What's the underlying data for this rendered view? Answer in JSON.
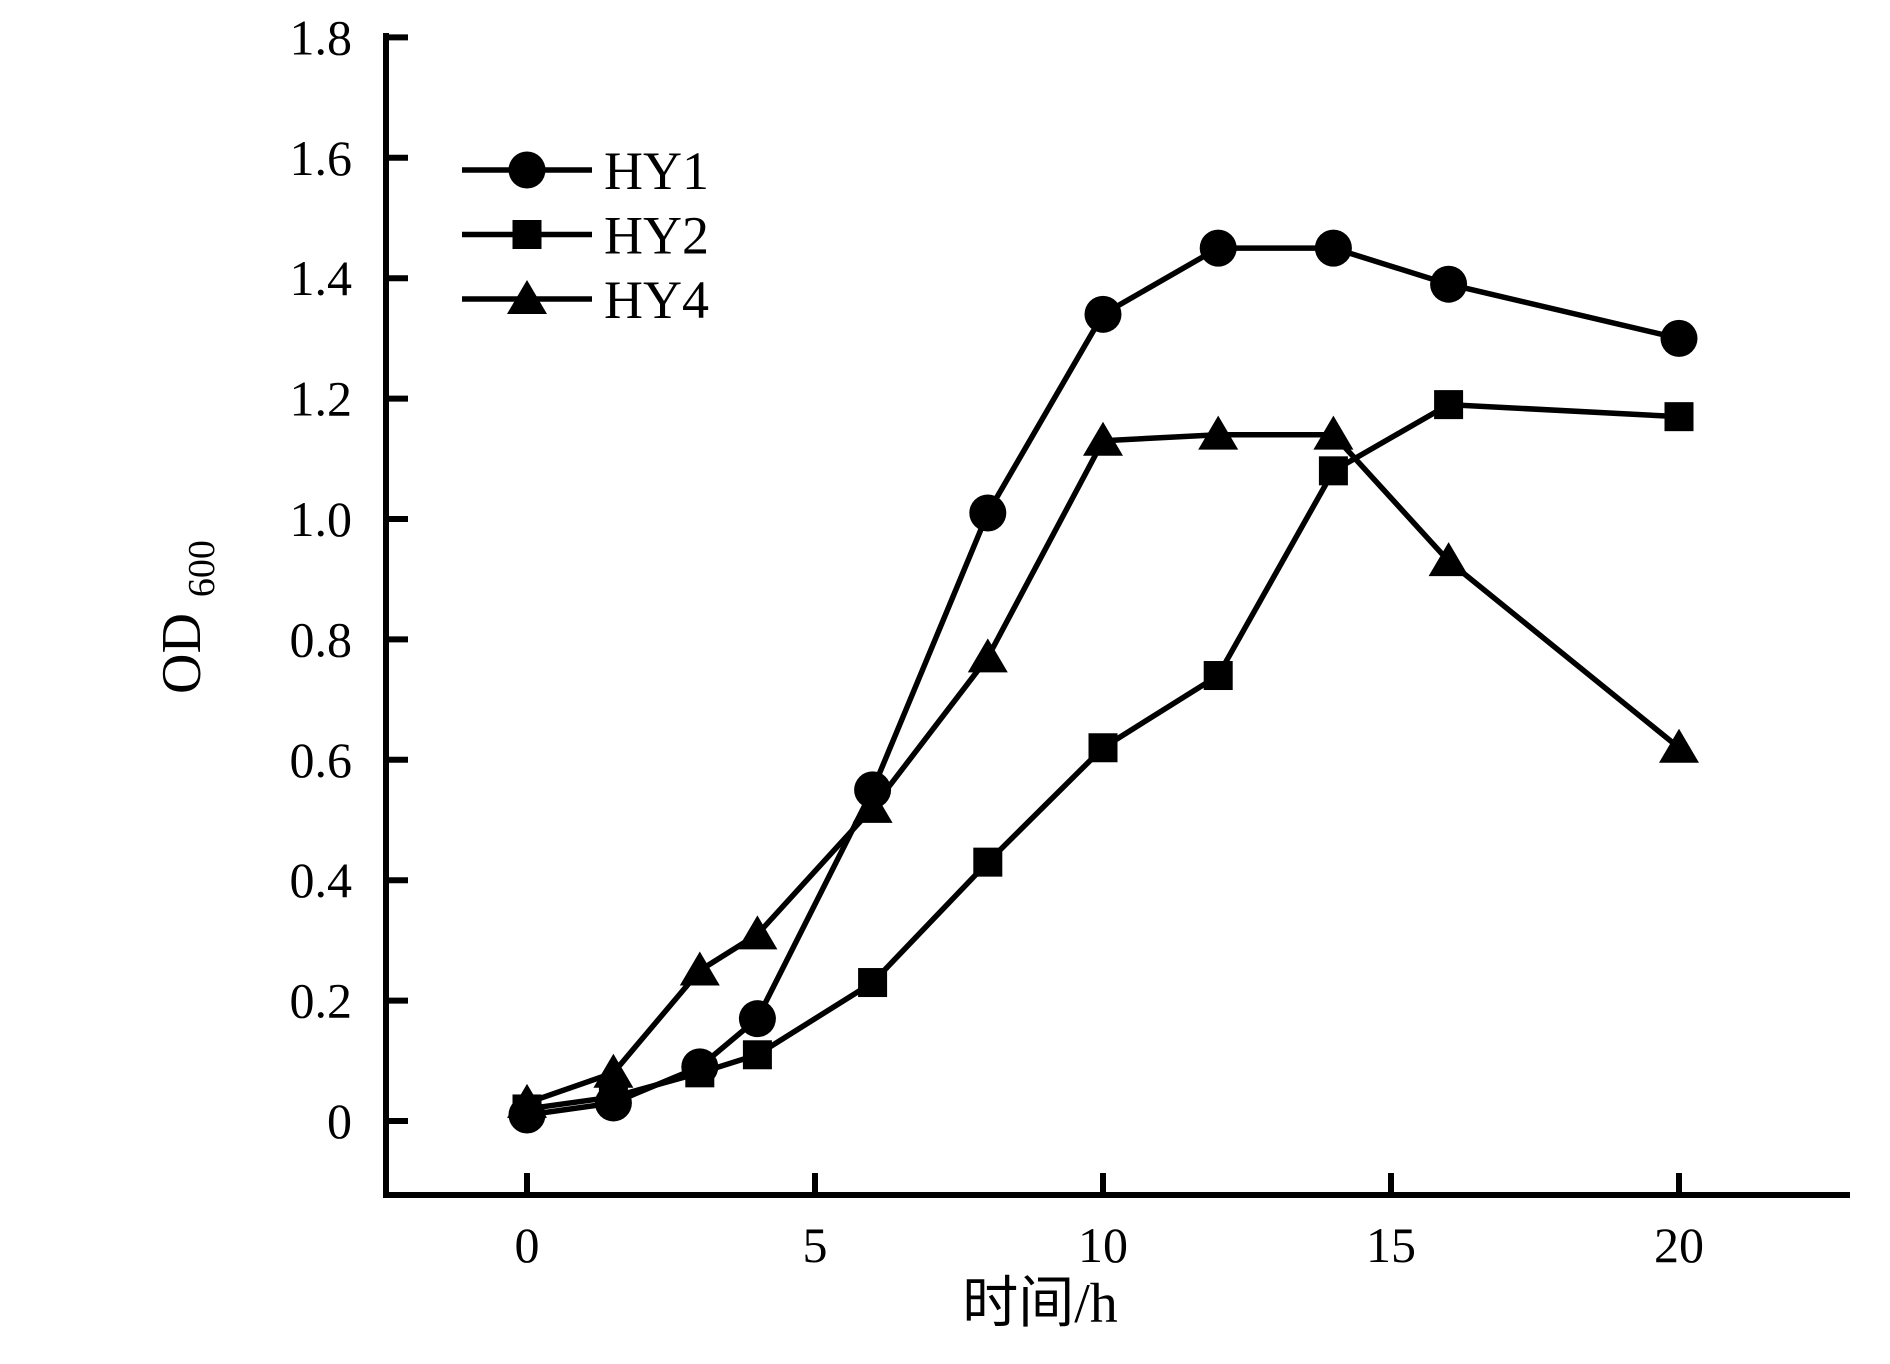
{
  "figure": {
    "background": "#ffffff",
    "ink": "#000000"
  },
  "chart_data": {
    "type": "line",
    "title": "",
    "xlabel": "时间/h",
    "ylabel": "OD600",
    "ylabel_main": "OD",
    "ylabel_sub": "600",
    "x": [
      0,
      1.5,
      3,
      4,
      6,
      8,
      10,
      12,
      14,
      16,
      20
    ],
    "series": [
      {
        "name": "HY1",
        "marker": "circle",
        "color": "#000000",
        "values": [
          0.01,
          0.03,
          0.09,
          0.17,
          0.55,
          1.01,
          1.34,
          1.45,
          1.45,
          1.39,
          1.3
        ]
      },
      {
        "name": "HY2",
        "marker": "square",
        "color": "#000000",
        "values": [
          0.02,
          0.04,
          0.08,
          0.11,
          0.23,
          0.43,
          0.62,
          0.74,
          1.08,
          1.19,
          1.17
        ]
      },
      {
        "name": "HY4",
        "marker": "triangle",
        "color": "#000000",
        "values": [
          0.03,
          0.08,
          0.25,
          0.31,
          0.52,
          0.77,
          1.13,
          1.14,
          1.14,
          0.93,
          0.62
        ]
      }
    ],
    "xticks": [
      0,
      5,
      10,
      15,
      20
    ],
    "xtick_labels": [
      "0",
      "5",
      "10",
      "15",
      "20"
    ],
    "yticks": [
      0,
      0.2,
      0.4,
      0.6,
      0.8,
      1.0,
      1.2,
      1.4,
      1.6,
      1.8
    ],
    "ytick_labels": [
      "0",
      "0.2",
      "0.4",
      "0.6",
      "0.8",
      "1.0",
      "1.2",
      "1.4",
      "1.6",
      "1.8"
    ],
    "xlim": [
      0,
      20
    ],
    "ylim": [
      0,
      1.8
    ],
    "grid": false,
    "legend_position": "upper-left",
    "line_color": "#000000"
  }
}
